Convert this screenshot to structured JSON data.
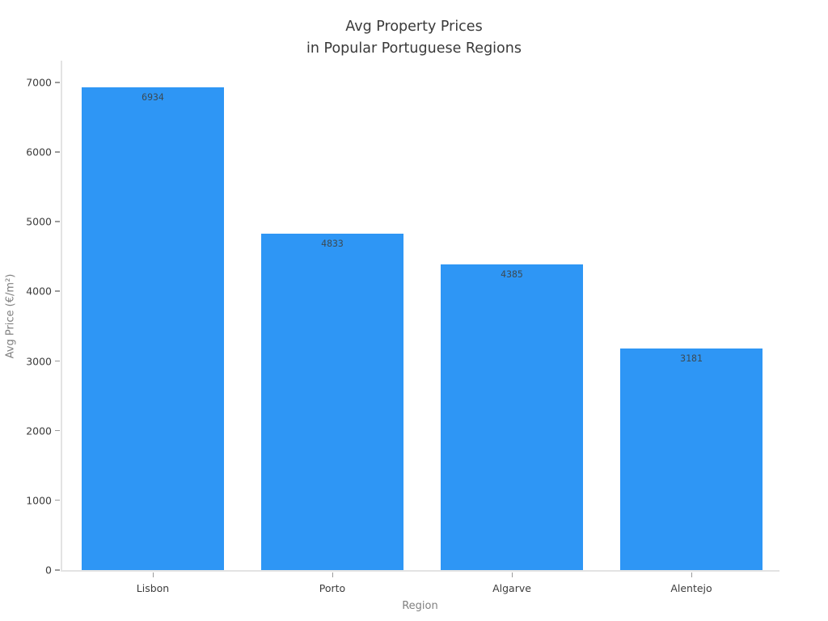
{
  "chart_data": {
    "type": "bar",
    "title_lines": [
      "Avg Property Prices",
      "in Popular Portuguese Regions"
    ],
    "categories": [
      "Lisbon",
      "Porto",
      "Algarve",
      "Alentejo"
    ],
    "values": [
      6934,
      4833,
      4385,
      3181
    ],
    "bar_labels": [
      "6934",
      "4833",
      "4385",
      "3181"
    ],
    "xlabel": "Region",
    "ylabel": "Avg Price (€/m²)",
    "ylim": [
      0,
      7000
    ],
    "yticks": [
      0,
      1000,
      2000,
      3000,
      4000,
      5000,
      6000,
      7000
    ],
    "grid": false,
    "legend": "none",
    "bar_color": "#2e96f5",
    "bar_label_color": "#3b4a54",
    "axis_spine_color": "#e3e3e3",
    "tick_label_color": "#3c3c3c",
    "axis_title_color": "#808080",
    "title_color": "#3a3a3a",
    "background": "#ffffff"
  }
}
